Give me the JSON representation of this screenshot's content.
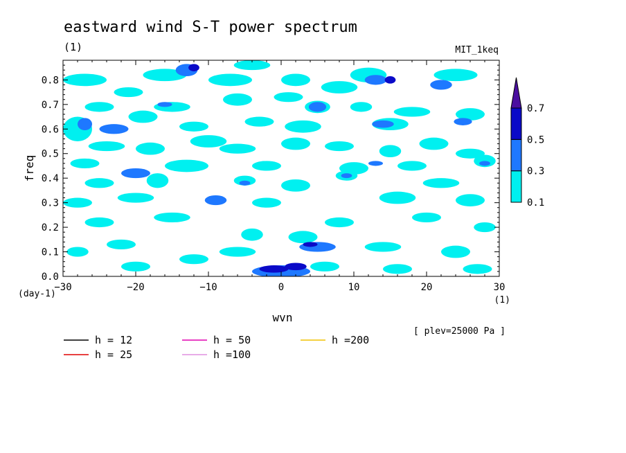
{
  "chart_data": {
    "type": "heatmap",
    "title": "eastward wind S-T power spectrum",
    "units_label": "(1)",
    "model_label": "MIT_1keq",
    "xlabel": "wvn",
    "x_unit_label": "(1)",
    "ylabel": "freq",
    "y_unit_label": "(day-1)",
    "level_note": "[ plev=25000 Pa ]",
    "xlim": [
      -30,
      30
    ],
    "ylim": [
      0,
      0.88
    ],
    "x_ticks": [
      "-30",
      "-20",
      "-10",
      "0",
      "10",
      "20",
      "30"
    ],
    "y_ticks": [
      "0.0",
      "0.1",
      "0.2",
      "0.3",
      "0.4",
      "0.5",
      "0.6",
      "0.7",
      "0.8"
    ],
    "colorbar": {
      "levels": [
        "0.1",
        "0.3",
        "0.5",
        "0.7"
      ],
      "colors": [
        "#00f0f0",
        "#1e78ff",
        "#0a0ac8",
        "#4b0fa0"
      ]
    },
    "dispersion_curves": [
      {
        "label": "h = 12",
        "color": "#000000",
        "h": 12
      },
      {
        "label": "h = 25",
        "color": "#e00000",
        "h": 25
      },
      {
        "label": "h = 50",
        "color": "#e000b0",
        "h": 50
      },
      {
        "label": "h =100",
        "color": "#e090e0",
        "h": 100
      },
      {
        "label": "h =200",
        "color": "#f0c000",
        "h": 200
      }
    ],
    "patches": [
      {
        "x": 0,
        "y": 0.02,
        "w": 8,
        "h": 0.05,
        "v": 0.3
      },
      {
        "x": -1,
        "y": 0.03,
        "w": 4,
        "h": 0.03,
        "v": 0.5
      },
      {
        "x": 2,
        "y": 0.04,
        "w": 3,
        "h": 0.03,
        "v": 0.5
      },
      {
        "x": 5,
        "y": 0.12,
        "w": 5,
        "h": 0.04,
        "v": 0.3
      },
      {
        "x": 4,
        "y": 0.13,
        "w": 2,
        "h": 0.02,
        "v": 0.5
      },
      {
        "x": 3,
        "y": 0.16,
        "w": 4,
        "h": 0.05,
        "v": 0.1
      },
      {
        "x": -4,
        "y": 0.17,
        "w": 3,
        "h": 0.05,
        "v": 0.1
      },
      {
        "x": -6,
        "y": 0.1,
        "w": 5,
        "h": 0.04,
        "v": 0.1
      },
      {
        "x": 6,
        "y": 0.04,
        "w": 4,
        "h": 0.04,
        "v": 0.1
      },
      {
        "x": -9,
        "y": 0.31,
        "w": 3,
        "h": 0.04,
        "v": 0.3
      },
      {
        "x": -10,
        "y": 0.55,
        "w": 5,
        "h": 0.05,
        "v": 0.1
      },
      {
        "x": 5,
        "y": 0.69,
        "w": 2.4,
        "h": 0.04,
        "v": 0.3
      },
      {
        "x": 5,
        "y": 0.69,
        "w": 3.5,
        "h": 0.05,
        "v": 0.1
      },
      {
        "x": -13,
        "y": 0.84,
        "w": 3,
        "h": 0.05,
        "v": 0.3
      },
      {
        "x": -12,
        "y": 0.85,
        "w": 1.5,
        "h": 0.03,
        "v": 0.5
      },
      {
        "x": -20,
        "y": 0.42,
        "w": 4,
        "h": 0.04,
        "v": 0.3
      },
      {
        "x": -17,
        "y": 0.39,
        "w": 3,
        "h": 0.06,
        "v": 0.1
      },
      {
        "x": -27,
        "y": 0.62,
        "w": 2,
        "h": 0.05,
        "v": 0.3
      },
      {
        "x": -28,
        "y": 0.6,
        "w": 4,
        "h": 0.1,
        "v": 0.1
      },
      {
        "x": -23,
        "y": 0.6,
        "w": 4,
        "h": 0.04,
        "v": 0.3
      },
      {
        "x": -27,
        "y": 0.8,
        "w": 6,
        "h": 0.05,
        "v": 0.1
      },
      {
        "x": -16,
        "y": 0.82,
        "w": 6,
        "h": 0.05,
        "v": 0.1
      },
      {
        "x": -21,
        "y": 0.75,
        "w": 4,
        "h": 0.04,
        "v": 0.1
      },
      {
        "x": -7,
        "y": 0.8,
        "w": 6,
        "h": 0.05,
        "v": 0.1
      },
      {
        "x": -4,
        "y": 0.86,
        "w": 5,
        "h": 0.04,
        "v": 0.1
      },
      {
        "x": 2,
        "y": 0.8,
        "w": 4,
        "h": 0.05,
        "v": 0.1
      },
      {
        "x": 12,
        "y": 0.82,
        "w": 5,
        "h": 0.06,
        "v": 0.1
      },
      {
        "x": 15,
        "y": 0.8,
        "w": 1.5,
        "h": 0.03,
        "v": 0.5
      },
      {
        "x": 13,
        "y": 0.8,
        "w": 3,
        "h": 0.04,
        "v": 0.3
      },
      {
        "x": 24,
        "y": 0.82,
        "w": 6,
        "h": 0.05,
        "v": 0.1
      },
      {
        "x": 22,
        "y": 0.78,
        "w": 3,
        "h": 0.04,
        "v": 0.3
      },
      {
        "x": 8,
        "y": 0.77,
        "w": 5,
        "h": 0.05,
        "v": 0.1
      },
      {
        "x": 1,
        "y": 0.73,
        "w": 4,
        "h": 0.04,
        "v": 0.1
      },
      {
        "x": -6,
        "y": 0.72,
        "w": 4,
        "h": 0.05,
        "v": 0.1
      },
      {
        "x": -15,
        "y": 0.69,
        "w": 5,
        "h": 0.04,
        "v": 0.1
      },
      {
        "x": -16,
        "y": 0.7,
        "w": 2,
        "h": 0.02,
        "v": 0.3
      },
      {
        "x": -25,
        "y": 0.69,
        "w": 4,
        "h": 0.04,
        "v": 0.1
      },
      {
        "x": 11,
        "y": 0.69,
        "w": 3,
        "h": 0.04,
        "v": 0.1
      },
      {
        "x": 18,
        "y": 0.67,
        "w": 5,
        "h": 0.04,
        "v": 0.1
      },
      {
        "x": 26,
        "y": 0.66,
        "w": 4,
        "h": 0.05,
        "v": 0.1
      },
      {
        "x": 25,
        "y": 0.63,
        "w": 2.5,
        "h": 0.03,
        "v": 0.3
      },
      {
        "x": 14,
        "y": 0.62,
        "w": 3,
        "h": 0.03,
        "v": 0.3
      },
      {
        "x": 15,
        "y": 0.62,
        "w": 5,
        "h": 0.05,
        "v": 0.1
      },
      {
        "x": 3,
        "y": 0.61,
        "w": 5,
        "h": 0.05,
        "v": 0.1
      },
      {
        "x": -3,
        "y": 0.63,
        "w": 4,
        "h": 0.04,
        "v": 0.1
      },
      {
        "x": -19,
        "y": 0.65,
        "w": 4,
        "h": 0.05,
        "v": 0.1
      },
      {
        "x": -12,
        "y": 0.61,
        "w": 4,
        "h": 0.04,
        "v": 0.1
      },
      {
        "x": -24,
        "y": 0.53,
        "w": 5,
        "h": 0.04,
        "v": 0.1
      },
      {
        "x": -18,
        "y": 0.52,
        "w": 4,
        "h": 0.05,
        "v": 0.1
      },
      {
        "x": -6,
        "y": 0.52,
        "w": 5,
        "h": 0.04,
        "v": 0.1
      },
      {
        "x": 2,
        "y": 0.54,
        "w": 4,
        "h": 0.05,
        "v": 0.1
      },
      {
        "x": 8,
        "y": 0.53,
        "w": 4,
        "h": 0.04,
        "v": 0.1
      },
      {
        "x": 15,
        "y": 0.51,
        "w": 3,
        "h": 0.05,
        "v": 0.1
      },
      {
        "x": 21,
        "y": 0.54,
        "w": 4,
        "h": 0.05,
        "v": 0.1
      },
      {
        "x": 26,
        "y": 0.5,
        "w": 4,
        "h": 0.04,
        "v": 0.1
      },
      {
        "x": -27,
        "y": 0.46,
        "w": 4,
        "h": 0.04,
        "v": 0.1
      },
      {
        "x": -13,
        "y": 0.45,
        "w": 6,
        "h": 0.05,
        "v": 0.1
      },
      {
        "x": -2,
        "y": 0.45,
        "w": 4,
        "h": 0.04,
        "v": 0.1
      },
      {
        "x": 10,
        "y": 0.44,
        "w": 4,
        "h": 0.05,
        "v": 0.1
      },
      {
        "x": 13,
        "y": 0.46,
        "w": 2,
        "h": 0.02,
        "v": 0.3
      },
      {
        "x": 18,
        "y": 0.45,
        "w": 4,
        "h": 0.04,
        "v": 0.1
      },
      {
        "x": 28,
        "y": 0.47,
        "w": 3,
        "h": 0.05,
        "v": 0.1
      },
      {
        "x": 28,
        "y": 0.46,
        "w": 1.5,
        "h": 0.02,
        "v": 0.3
      },
      {
        "x": -25,
        "y": 0.38,
        "w": 4,
        "h": 0.04,
        "v": 0.1
      },
      {
        "x": -5,
        "y": 0.39,
        "w": 3,
        "h": 0.04,
        "v": 0.1
      },
      {
        "x": -5,
        "y": 0.38,
        "w": 1.5,
        "h": 0.02,
        "v": 0.3
      },
      {
        "x": 2,
        "y": 0.37,
        "w": 4,
        "h": 0.05,
        "v": 0.1
      },
      {
        "x": 9,
        "y": 0.41,
        "w": 3,
        "h": 0.04,
        "v": 0.1
      },
      {
        "x": 9,
        "y": 0.41,
        "w": 1.5,
        "h": 0.02,
        "v": 0.3
      },
      {
        "x": 22,
        "y": 0.38,
        "w": 5,
        "h": 0.04,
        "v": 0.1
      },
      {
        "x": -28,
        "y": 0.3,
        "w": 4,
        "h": 0.04,
        "v": 0.1
      },
      {
        "x": -20,
        "y": 0.32,
        "w": 5,
        "h": 0.04,
        "v": 0.1
      },
      {
        "x": -2,
        "y": 0.3,
        "w": 4,
        "h": 0.04,
        "v": 0.1
      },
      {
        "x": 16,
        "y": 0.32,
        "w": 5,
        "h": 0.05,
        "v": 0.1
      },
      {
        "x": 26,
        "y": 0.31,
        "w": 4,
        "h": 0.05,
        "v": 0.1
      },
      {
        "x": -25,
        "y": 0.22,
        "w": 4,
        "h": 0.04,
        "v": 0.1
      },
      {
        "x": -15,
        "y": 0.24,
        "w": 5,
        "h": 0.04,
        "v": 0.1
      },
      {
        "x": 8,
        "y": 0.22,
        "w": 4,
        "h": 0.04,
        "v": 0.1
      },
      {
        "x": 20,
        "y": 0.24,
        "w": 4,
        "h": 0.04,
        "v": 0.1
      },
      {
        "x": 28,
        "y": 0.2,
        "w": 3,
        "h": 0.04,
        "v": 0.1
      },
      {
        "x": -22,
        "y": 0.13,
        "w": 4,
        "h": 0.04,
        "v": 0.1
      },
      {
        "x": -12,
        "y": 0.07,
        "w": 4,
        "h": 0.04,
        "v": 0.1
      },
      {
        "x": 14,
        "y": 0.12,
        "w": 5,
        "h": 0.04,
        "v": 0.1
      },
      {
        "x": 24,
        "y": 0.1,
        "w": 4,
        "h": 0.05,
        "v": 0.1
      },
      {
        "x": 27,
        "y": 0.03,
        "w": 4,
        "h": 0.04,
        "v": 0.1
      },
      {
        "x": 16,
        "y": 0.03,
        "w": 4,
        "h": 0.04,
        "v": 0.1
      },
      {
        "x": -20,
        "y": 0.04,
        "w": 4,
        "h": 0.04,
        "v": 0.1
      },
      {
        "x": -28,
        "y": 0.1,
        "w": 3,
        "h": 0.04,
        "v": 0.1
      }
    ]
  }
}
